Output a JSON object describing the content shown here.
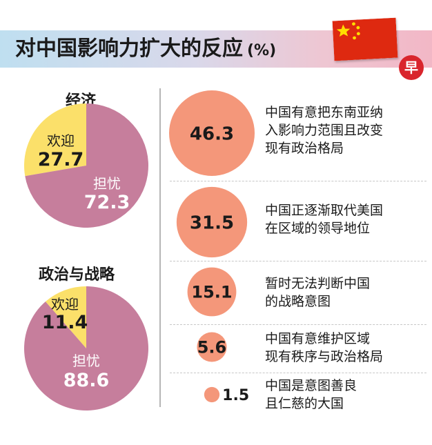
{
  "header": {
    "title": "对中国影响力扩大的反应",
    "unit": "(%)",
    "logo_text": "早"
  },
  "colors": {
    "welcome": "#fbe06a",
    "worry": "#c67e9c",
    "bubble": "#f4977a",
    "flag_red": "#de2910",
    "flag_star": "#ffde00"
  },
  "chart_data": [
    {
      "type": "pie",
      "title": "经济",
      "slices": [
        {
          "label": "欢迎",
          "value": 27.7
        },
        {
          "label": "担忧",
          "value": 72.3
        }
      ]
    },
    {
      "type": "pie",
      "title": "政治与战略",
      "slices": [
        {
          "label": "欢迎",
          "value": 11.4
        },
        {
          "label": "担忧",
          "value": 88.6
        }
      ]
    },
    {
      "type": "bubble",
      "items": [
        {
          "value": 46.3,
          "label_lines": [
            "中国有意把东南亚纳",
            "入影响力范围且改变",
            "现有政治格局"
          ]
        },
        {
          "value": 31.5,
          "label_lines": [
            "中国正逐渐取代美国",
            "在区域的领导地位"
          ]
        },
        {
          "value": 15.1,
          "label_lines": [
            "暂时无法判断中国",
            "的战略意图"
          ]
        },
        {
          "value": 5.6,
          "label_lines": [
            "中国有意维护区域",
            "现有秩序与政治格局"
          ]
        },
        {
          "value": 1.5,
          "label_lines": [
            "中国是意图善良",
            "且仁慈的大国"
          ]
        }
      ]
    }
  ]
}
